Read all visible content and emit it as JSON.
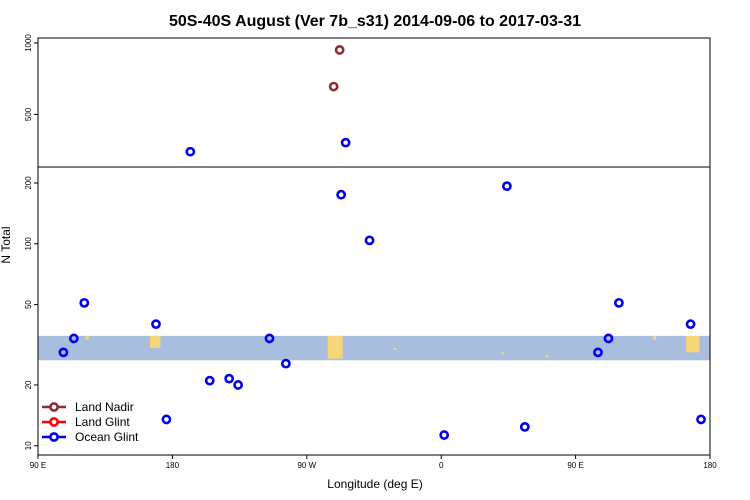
{
  "chart_data": {
    "type": "scatter",
    "title": "50S-40S August (Ver 7b_s31)   2014-09-06 to 2017-03-31",
    "xlabel": "Longitude (deg E)",
    "ylabel": "N Total",
    "y_scale": "log",
    "x_ticks": [
      {
        "value": 90,
        "label": "90 E"
      },
      {
        "value": 180,
        "label": "180"
      },
      {
        "value": 270,
        "label": "90 W"
      },
      {
        "value": 360,
        "label": "0"
      },
      {
        "value": 450,
        "label": "90 E"
      },
      {
        "value": 540,
        "label": "180"
      }
    ],
    "xlim": [
      90,
      540
    ],
    "panels": [
      {
        "name": "upper",
        "ylim": [
          300,
          1050
        ],
        "y_ticks": [
          {
            "value": 500,
            "label": "500"
          },
          {
            "value": 1000,
            "label": "1000"
          }
        ]
      },
      {
        "name": "lower",
        "ylim": [
          9,
          240
        ],
        "y_ticks": [
          {
            "value": 10,
            "label": "10"
          },
          {
            "value": 20,
            "label": "20"
          },
          {
            "value": 50,
            "label": "50"
          },
          {
            "value": 100,
            "label": "100"
          },
          {
            "value": 200,
            "label": "200"
          }
        ]
      }
    ],
    "land_band": {
      "ymin": 26.5,
      "ymax": 35,
      "color": "#a9bedf"
    },
    "land_color": "#f5d57a",
    "legend": {
      "position": "bottom-left"
    },
    "series": [
      {
        "name": "Land Nadir",
        "color": "#8b2e2e",
        "points": [
          [
            288,
            655
          ],
          [
            292,
            935
          ]
        ]
      },
      {
        "name": "Land Glint",
        "color": "#ff0000",
        "points": []
      },
      {
        "name": "Ocean Glint",
        "color": "#0000ee",
        "points": [
          [
            107,
            29
          ],
          [
            114,
            34
          ],
          [
            121,
            51
          ],
          [
            169,
            40
          ],
          [
            176,
            13.5
          ],
          [
            192,
            348
          ],
          [
            205,
            21
          ],
          [
            218,
            21.5
          ],
          [
            224,
            20
          ],
          [
            245,
            34
          ],
          [
            256,
            25.5
          ],
          [
            296,
            380
          ],
          [
            293,
            175
          ],
          [
            312,
            104
          ],
          [
            362,
            11.3
          ],
          [
            404,
            193
          ],
          [
            416,
            12.4
          ],
          [
            465,
            29
          ],
          [
            472,
            34
          ],
          [
            479,
            51
          ],
          [
            527,
            40
          ],
          [
            534,
            13.5
          ]
        ]
      }
    ]
  }
}
